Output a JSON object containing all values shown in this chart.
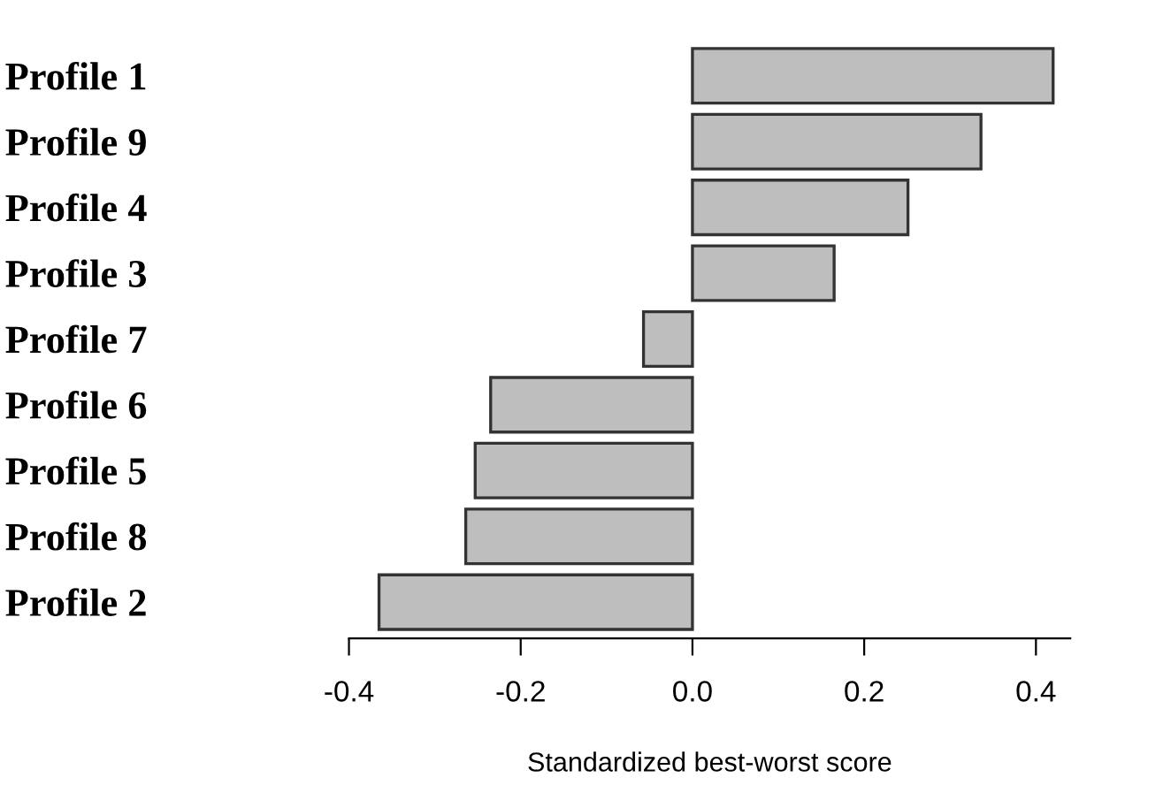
{
  "chart_data": {
    "type": "bar",
    "orientation": "horizontal",
    "xlabel": "Standardized best-worst score",
    "categories": [
      "Profile 1",
      "Profile 9",
      "Profile 4",
      "Profile 3",
      "Profile 7",
      "Profile 6",
      "Profile 5",
      "Profile 8",
      "Profile 2"
    ],
    "values": [
      0.42,
      0.336,
      0.251,
      0.165,
      -0.057,
      -0.235,
      -0.253,
      -0.264,
      -0.365
    ],
    "color": "#bebebe",
    "xlim": [
      -0.4,
      0.44
    ],
    "xticks": [
      {
        "value": -0.4,
        "label": "-0.4"
      },
      {
        "value": -0.2,
        "label": "-0.2"
      },
      {
        "value": 0.0,
        "label": "0.0"
      },
      0.2,
      0.4
    ],
    "grid": false
  }
}
